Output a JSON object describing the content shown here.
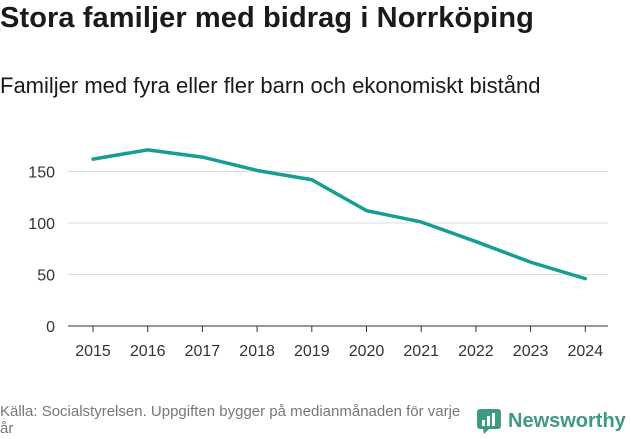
{
  "header": {
    "title": "Stora familjer med bidrag i Norrköping",
    "subtitle": "Familjer med fyra eller fler barn och ekonomiskt bistånd"
  },
  "footer": {
    "source": "Källa: Socialstyrelsen. Uppgiften bygger på medianmånaden för varje år",
    "brand": "Newsworthy"
  },
  "colors": {
    "line": "#159e91",
    "grid": "#dddddd",
    "brand": "#3f9a84"
  },
  "chart_data": {
    "type": "line",
    "title": "Familjer med fyra eller fler barn och ekonomiskt bistånd",
    "xlabel": "",
    "ylabel": "",
    "x": [
      "2015",
      "2016",
      "2017",
      "2018",
      "2019",
      "2020",
      "2021",
      "2022",
      "2023",
      "2024"
    ],
    "series": [
      {
        "name": "Familjer",
        "values": [
          162,
          171,
          164,
          151,
          142,
          112,
          101,
          82,
          62,
          46
        ]
      }
    ],
    "yticks": [
      0,
      50,
      100,
      150
    ],
    "ylim": [
      0,
      180
    ],
    "grid": true
  }
}
